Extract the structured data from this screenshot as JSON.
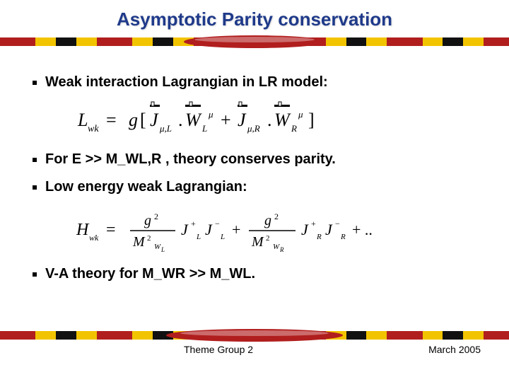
{
  "title": "Asymptotic Parity conservation",
  "bullets": {
    "b1": "Weak interaction Lagrangian in LR model:",
    "b2": "For E >> M_WL,R , theory conserves parity.",
    "b3": "Low energy weak Lagrangian:",
    "b4": "V-A theory for M_WR >> M_WL."
  },
  "formula1": {
    "text_parts": {
      "L": "L",
      "wk": "wk",
      "eq": " = g[",
      "J1": "J",
      "mu_L": "μ,L",
      "dot1": ".",
      "W1": "W",
      "Lsub": "L",
      "mu": "μ",
      "plus": " + ",
      "J2": "J",
      "mu_R": "μ,R",
      "dot2": ".",
      "W2": "W",
      "Rsub": "R",
      "close": "]"
    },
    "font_family": "serif",
    "font_size_main": 26,
    "font_size_sub": 14,
    "font_size_sup": 14,
    "color": "#000000"
  },
  "formula2": {
    "text_parts": {
      "H": "H",
      "wk": "wk",
      "eq": " = ",
      "g2": "g",
      "sq": "2",
      "M2": "M",
      "WLs": "W",
      "Lsub": "L",
      "J1p": "J",
      "plus1": "+",
      "L1": "L",
      "J1m": "J",
      "minus1": "−",
      "L2": "L",
      "plus": " + ",
      "WRs": "W",
      "Rsub": "R",
      "J2p": "J",
      "plus2": "+",
      "R1": "R",
      "J2m": "J",
      "minus2": "−",
      "R2": "R",
      "dots": " + .."
    },
    "font_family": "serif",
    "font_size_main": 24,
    "font_size_sub": 12,
    "color": "#000000"
  },
  "footer": {
    "center": "Theme Group 2",
    "right": "March 2005"
  },
  "stripe": {
    "segments": [
      {
        "color": "#b11e1e",
        "w": 7
      },
      {
        "color": "#f2c400",
        "w": 4
      },
      {
        "color": "#111111",
        "w": 4
      },
      {
        "color": "#f2c400",
        "w": 4
      },
      {
        "color": "#b11e1e",
        "w": 7
      },
      {
        "color": "#f2c400",
        "w": 4
      },
      {
        "color": "#111111",
        "w": 4
      },
      {
        "color": "#f2c400",
        "w": 4
      },
      {
        "color": "#b11e1e",
        "w": 7
      },
      {
        "color": "#f2c400",
        "w": 4
      },
      {
        "color": "#111111",
        "w": 4
      },
      {
        "color": "#f2c400",
        "w": 4
      },
      {
        "color": "#b11e1e",
        "w": 7
      },
      {
        "color": "#f2c400",
        "w": 4
      },
      {
        "color": "#111111",
        "w": 4
      },
      {
        "color": "#f2c400",
        "w": 4
      },
      {
        "color": "#b11e1e",
        "w": 7
      },
      {
        "color": "#f2c400",
        "w": 4
      },
      {
        "color": "#111111",
        "w": 4
      },
      {
        "color": "#f2c400",
        "w": 4
      },
      {
        "color": "#b11e1e",
        "w": 5
      }
    ],
    "accent_color": "#b11e1e",
    "accent_highlight": "#e8b8b8"
  }
}
